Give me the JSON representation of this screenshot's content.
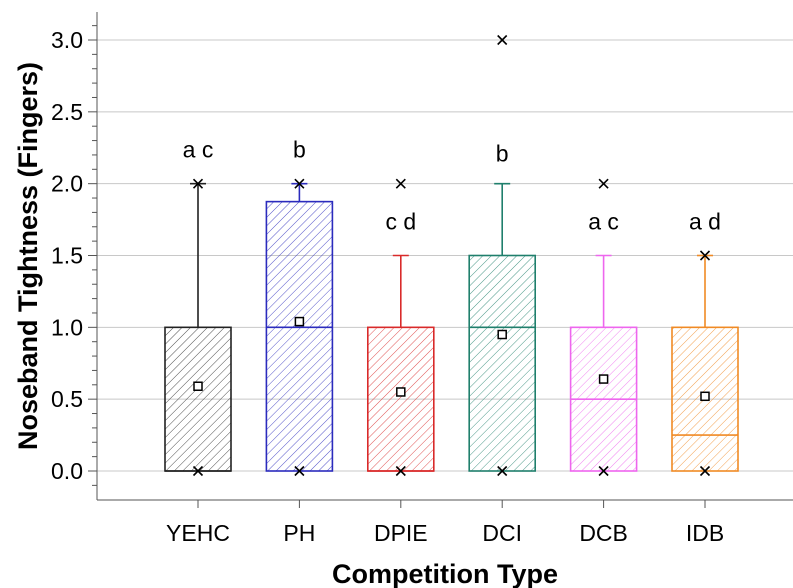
{
  "chart_data": {
    "type": "box",
    "xlabel": "Competition Type",
    "ylabel": "Noseband Tightness (Fingers)",
    "ylim": [
      -0.2,
      3.2
    ],
    "yticks": [
      0.0,
      0.5,
      1.0,
      1.5,
      2.0,
      2.5,
      3.0
    ],
    "ytick_labels": [
      "0.0",
      "0.5",
      "1.0",
      "1.5",
      "2.0",
      "2.5",
      "3.0"
    ],
    "grid": true,
    "categories": [
      "YEHC",
      "PH",
      "DPIE",
      "DCI",
      "DCB",
      "IDB"
    ],
    "series": [
      {
        "category": "YEHC",
        "color": "#222222",
        "q1": 0.0,
        "median": 0.0,
        "q3": 1.0,
        "whisker_low": 0.0,
        "whisker_high": 2.0,
        "mean": 0.59,
        "min": 0.0,
        "max": 2.0,
        "significance": "a c"
      },
      {
        "category": "PH",
        "color": "#2b2bbd",
        "q1": 0.0,
        "median": 1.0,
        "q3": 1.875,
        "whisker_low": 0.0,
        "whisker_high": 2.0,
        "mean": 1.04,
        "min": 0.0,
        "max": 2.0,
        "significance": "b"
      },
      {
        "category": "DPIE",
        "color": "#d92a2a",
        "q1": 0.0,
        "median": 0.0,
        "q3": 1.0,
        "whisker_low": 0.0,
        "whisker_high": 1.5,
        "mean": 0.55,
        "min": 0.0,
        "max": 2.0,
        "significance": "c d"
      },
      {
        "category": "DCI",
        "color": "#1f7f6c",
        "q1": 0.0,
        "median": 1.0,
        "q3": 1.5,
        "whisker_low": 0.0,
        "whisker_high": 2.0,
        "mean": 0.95,
        "min": 0.0,
        "max": 3.0,
        "significance": "b"
      },
      {
        "category": "DCB",
        "color": "#ee66ee",
        "q1": 0.0,
        "median": 0.5,
        "q3": 1.0,
        "whisker_low": 0.0,
        "whisker_high": 1.5,
        "mean": 0.64,
        "min": 0.0,
        "max": 2.0,
        "significance": "a c"
      },
      {
        "category": "IDB",
        "color": "#f08a24",
        "q1": 0.0,
        "median": 0.25,
        "q3": 1.0,
        "whisker_low": 0.0,
        "whisker_high": 1.5,
        "mean": 0.52,
        "min": 0.0,
        "max": 1.5,
        "significance": "a d"
      }
    ]
  }
}
